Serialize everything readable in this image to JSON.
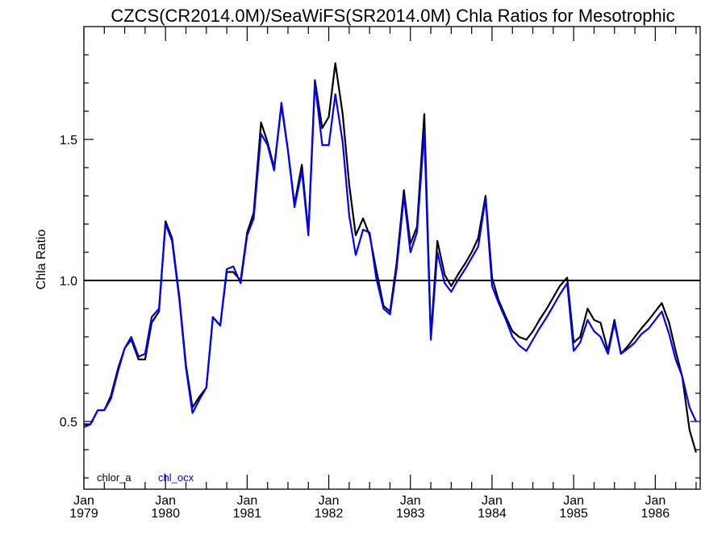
{
  "chart_data": {
    "type": "line",
    "title": "CZCS(CR2014.0M)/SeaWiFS(SR2014.0M)  Chla Ratios for Mesotrophic",
    "ylabel": "Chla Ratio",
    "xlabel": "",
    "xlim": [
      1979.0,
      1986.55
    ],
    "ylim": [
      0.26,
      1.9
    ],
    "grid": false,
    "reference_line": 1.0,
    "yticks": [
      {
        "value": 0.5,
        "label": "0.5"
      },
      {
        "value": 1.0,
        "label": "1.0"
      },
      {
        "value": 1.5,
        "label": "1.5"
      }
    ],
    "xticks": [
      {
        "value": 1979.0,
        "month": "Jan",
        "year": "1979"
      },
      {
        "value": 1980.0,
        "month": "Jan",
        "year": "1980"
      },
      {
        "value": 1981.0,
        "month": "Jan",
        "year": "1981"
      },
      {
        "value": 1982.0,
        "month": "Jan",
        "year": "1982"
      },
      {
        "value": 1983.0,
        "month": "Jan",
        "year": "1983"
      },
      {
        "value": 1984.0,
        "month": "Jan",
        "year": "1984"
      },
      {
        "value": 1985.0,
        "month": "Jan",
        "year": "1985"
      },
      {
        "value": 1986.0,
        "month": "Jan",
        "year": "1986"
      }
    ],
    "legend_placement": "bottom-left",
    "series": [
      {
        "name": "chlor_a",
        "color": "#000000",
        "x": [
          1979.0,
          1979.08,
          1979.17,
          1979.25,
          1979.33,
          1979.42,
          1979.5,
          1979.58,
          1979.67,
          1979.75,
          1979.83,
          1979.92,
          1980.0,
          1980.08,
          1980.17,
          1980.25,
          1980.33,
          1980.42,
          1980.5,
          1980.58,
          1980.67,
          1980.75,
          1980.83,
          1980.92,
          1981.0,
          1981.08,
          1981.17,
          1981.25,
          1981.33,
          1981.42,
          1981.5,
          1981.58,
          1981.67,
          1981.75,
          1981.83,
          1981.92,
          1982.0,
          1982.08,
          1982.17,
          1982.25,
          1982.33,
          1982.42,
          1982.5,
          1982.58,
          1982.67,
          1982.75,
          1982.83,
          1982.92,
          1983.0,
          1983.08,
          1983.17,
          1983.25,
          1983.33,
          1983.42,
          1983.5,
          1983.58,
          1983.67,
          1983.75,
          1983.83,
          1983.92,
          1984.0,
          1984.08,
          1984.17,
          1984.25,
          1984.33,
          1984.42,
          1984.5,
          1984.58,
          1984.67,
          1984.75,
          1984.83,
          1984.92,
          1985.0,
          1985.08,
          1985.17,
          1985.25,
          1985.33,
          1985.42,
          1985.5,
          1985.58,
          1985.67,
          1985.75,
          1985.83,
          1985.92,
          1986.0,
          1986.08,
          1986.17,
          1986.25,
          1986.33,
          1986.42,
          1986.5
        ],
        "values": [
          0.49,
          0.49,
          0.54,
          0.54,
          0.59,
          0.69,
          0.76,
          0.79,
          0.72,
          0.72,
          0.85,
          0.89,
          1.21,
          1.15,
          0.94,
          0.7,
          0.55,
          0.59,
          0.62,
          0.87,
          0.84,
          1.03,
          1.03,
          1.0,
          1.17,
          1.24,
          1.56,
          1.49,
          1.4,
          1.62,
          1.46,
          1.27,
          1.41,
          1.17,
          1.71,
          1.54,
          1.58,
          1.77,
          1.59,
          1.34,
          1.16,
          1.22,
          1.16,
          1.04,
          0.91,
          0.89,
          1.06,
          1.32,
          1.13,
          1.19,
          1.59,
          0.8,
          1.14,
          1.02,
          0.98,
          1.02,
          1.06,
          1.1,
          1.15,
          1.3,
          1.01,
          0.93,
          0.87,
          0.82,
          0.8,
          0.79,
          0.82,
          0.86,
          0.9,
          0.94,
          0.98,
          1.01,
          0.78,
          0.8,
          0.9,
          0.86,
          0.85,
          0.75,
          0.86,
          0.74,
          0.77,
          0.8,
          0.83,
          0.86,
          0.89,
          0.92,
          0.85,
          0.75,
          0.66,
          0.47,
          0.39
        ]
      },
      {
        "name": "chl_ocx",
        "color": "#0000ff",
        "x": [
          1979.0,
          1979.08,
          1979.17,
          1979.25,
          1979.33,
          1979.42,
          1979.5,
          1979.58,
          1979.67,
          1979.75,
          1979.83,
          1979.92,
          1980.0,
          1980.08,
          1980.17,
          1980.25,
          1980.33,
          1980.42,
          1980.5,
          1980.58,
          1980.67,
          1980.75,
          1980.83,
          1980.92,
          1981.0,
          1981.08,
          1981.17,
          1981.25,
          1981.33,
          1981.42,
          1981.5,
          1981.58,
          1981.67,
          1981.75,
          1981.83,
          1981.92,
          1982.0,
          1982.08,
          1982.17,
          1982.25,
          1982.33,
          1982.42,
          1982.5,
          1982.58,
          1982.67,
          1982.75,
          1982.83,
          1982.92,
          1983.0,
          1983.08,
          1983.17,
          1983.25,
          1983.33,
          1983.42,
          1983.5,
          1983.58,
          1983.67,
          1983.75,
          1983.83,
          1983.92,
          1984.0,
          1984.08,
          1984.17,
          1984.25,
          1984.33,
          1984.42,
          1984.5,
          1984.58,
          1984.67,
          1984.75,
          1984.83,
          1984.92,
          1985.0,
          1985.08,
          1985.17,
          1985.25,
          1985.33,
          1985.42,
          1985.5,
          1985.58,
          1985.67,
          1985.75,
          1985.83,
          1985.92,
          1986.0,
          1986.08,
          1986.17,
          1986.25,
          1986.33,
          1986.42,
          1986.5
        ],
        "values": [
          0.48,
          0.49,
          0.54,
          0.54,
          0.58,
          0.68,
          0.76,
          0.8,
          0.73,
          0.74,
          0.87,
          0.9,
          1.2,
          1.14,
          0.93,
          0.69,
          0.53,
          0.58,
          0.62,
          0.87,
          0.84,
          1.04,
          1.05,
          0.99,
          1.16,
          1.22,
          1.52,
          1.48,
          1.39,
          1.63,
          1.46,
          1.26,
          1.39,
          1.16,
          1.7,
          1.48,
          1.48,
          1.66,
          1.49,
          1.23,
          1.09,
          1.18,
          1.17,
          1.01,
          0.9,
          0.88,
          1.04,
          1.3,
          1.1,
          1.17,
          1.53,
          0.79,
          1.1,
          0.99,
          0.96,
          1.0,
          1.04,
          1.08,
          1.12,
          1.29,
          0.98,
          0.92,
          0.86,
          0.8,
          0.77,
          0.75,
          0.79,
          0.83,
          0.87,
          0.91,
          0.95,
          0.99,
          0.75,
          0.78,
          0.86,
          0.82,
          0.8,
          0.74,
          0.85,
          0.74,
          0.76,
          0.78,
          0.81,
          0.83,
          0.86,
          0.89,
          0.81,
          0.72,
          0.66,
          0.55,
          0.5
        ]
      }
    ]
  }
}
